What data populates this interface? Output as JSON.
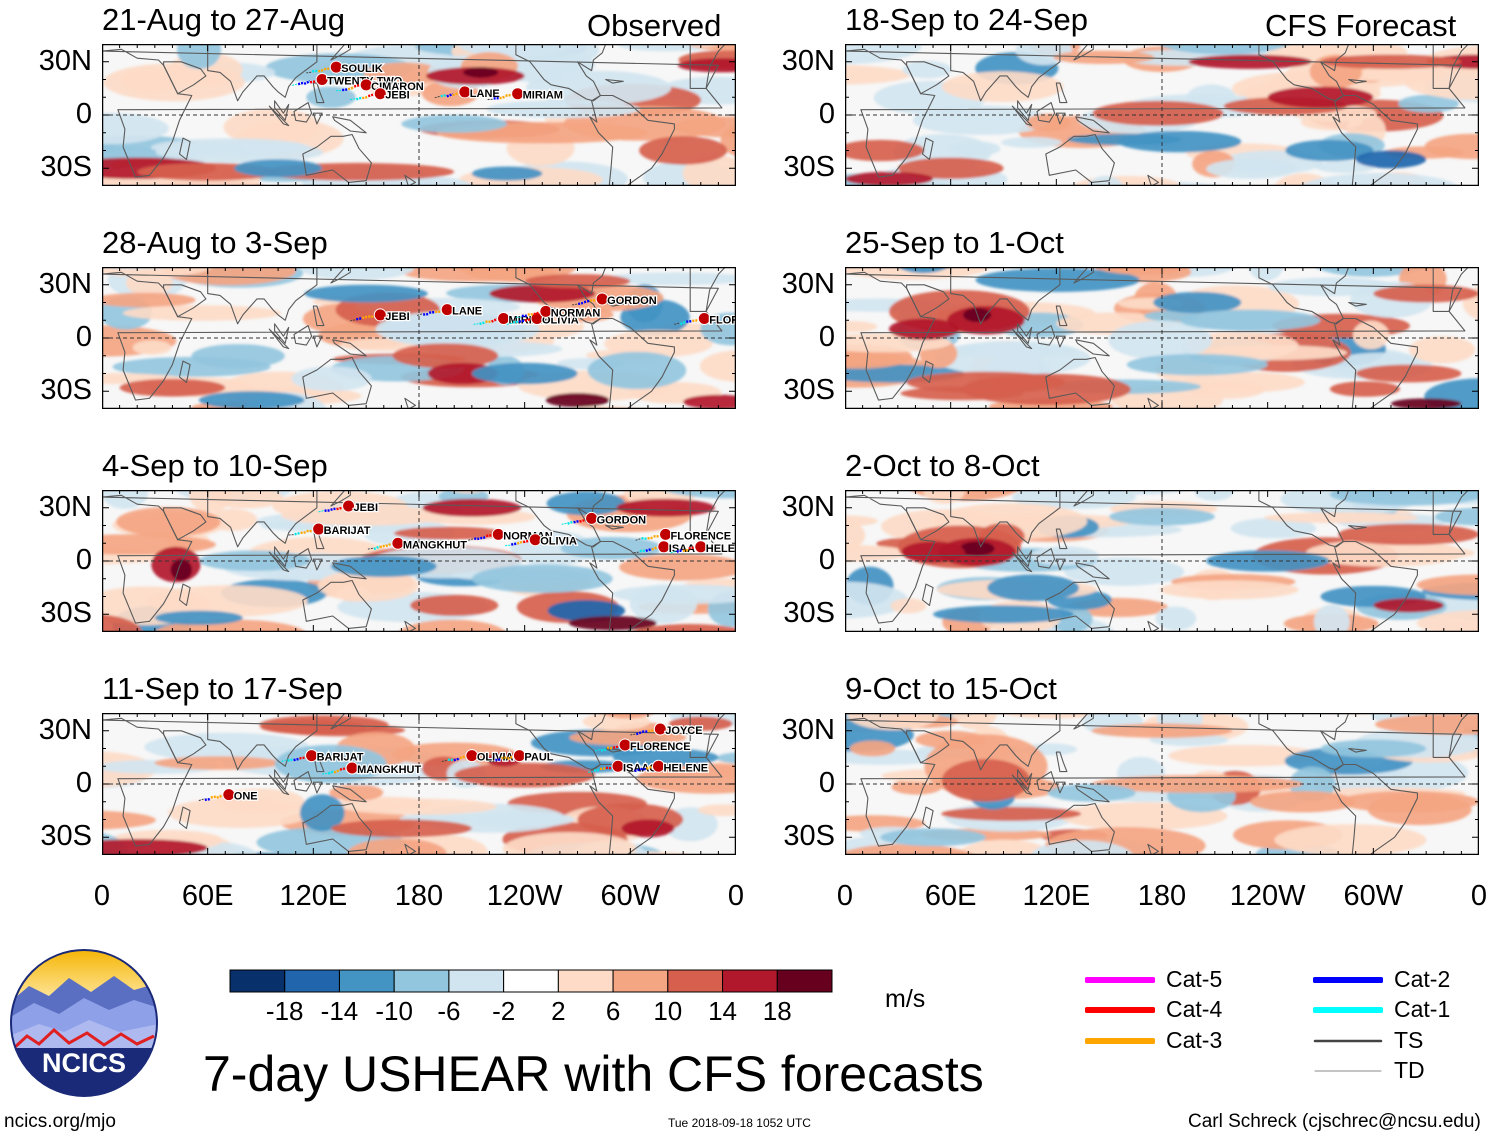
{
  "page": {
    "main_title": "7-day USHEAR with CFS forecasts",
    "observed_label": "Observed",
    "forecast_label": "CFS Forecast",
    "units": "m/s",
    "source_url": "ncics.org/mjo",
    "timestamp": "Tue 2018-09-18 1052 UTC",
    "author": "Carl Schreck (cjschrec@ncsu.edu)",
    "logo_text": "NCICS"
  },
  "chart_data": {
    "type": "heatmap",
    "variable": "7-day zonal wind shear (USHEAR)",
    "lat_ticks": [
      "30N",
      "0",
      "30S"
    ],
    "lon_ticks": [
      "0",
      "60E",
      "120E",
      "180",
      "120W",
      "60W",
      "0"
    ],
    "lon_range": [
      0,
      360
    ],
    "lat_range": [
      -40,
      40
    ],
    "colorbar": {
      "ticks": [
        "-18",
        "-14",
        "-10",
        "-6",
        "-2",
        "2",
        "6",
        "10",
        "14",
        "18"
      ],
      "colors": [
        "#08306b",
        "#2166ac",
        "#4393c3",
        "#92c5de",
        "#d1e5f0",
        "#ffffff",
        "#fddbc7",
        "#f4a582",
        "#d6604d",
        "#b2182b",
        "#67001f"
      ]
    },
    "observed_panels": [
      {
        "title": "21-Aug to 27-Aug",
        "storms": [
          {
            "name": "SOULIK",
            "lon": 133,
            "lat": 27
          },
          {
            "name": "TWENTY-TWO",
            "lon": 125,
            "lat": 20
          },
          {
            "name": "CIMARON",
            "lon": 150,
            "lat": 17
          },
          {
            "name": "JEBI",
            "lon": 158,
            "lat": 12
          },
          {
            "name": "LANE",
            "lon": 206,
            "lat": 13
          },
          {
            "name": "MIRIAM",
            "lon": 236,
            "lat": 12
          }
        ]
      },
      {
        "title": "28-Aug to 3-Sep",
        "storms": [
          {
            "name": "JEBI",
            "lon": 158,
            "lat": 13
          },
          {
            "name": "LANE",
            "lon": 196,
            "lat": 16
          },
          {
            "name": "MIRIAM",
            "lon": 228,
            "lat": 11
          },
          {
            "name": "OLIVIA",
            "lon": 247,
            "lat": 11
          },
          {
            "name": "NORMAN",
            "lon": 252,
            "lat": 15
          },
          {
            "name": "GORDON",
            "lon": 284,
            "lat": 22
          },
          {
            "name": "FLORENCE",
            "lon": 342,
            "lat": 11
          }
        ]
      },
      {
        "title": "4-Sep to 10-Sep",
        "storms": [
          {
            "name": "JEBI",
            "lon": 140,
            "lat": 31
          },
          {
            "name": "BARIJAT",
            "lon": 123,
            "lat": 18
          },
          {
            "name": "MANGKHUT",
            "lon": 168,
            "lat": 10
          },
          {
            "name": "NORMAN",
            "lon": 225,
            "lat": 15
          },
          {
            "name": "OLIVIA",
            "lon": 246,
            "lat": 12
          },
          {
            "name": "GORDON",
            "lon": 278,
            "lat": 24
          },
          {
            "name": "FLORENCE",
            "lon": 320,
            "lat": 15
          },
          {
            "name": "ISAAC",
            "lon": 319,
            "lat": 8
          },
          {
            "name": "HELENE",
            "lon": 340,
            "lat": 8
          }
        ]
      },
      {
        "title": "11-Sep to 17-Sep",
        "storms": [
          {
            "name": "BARIJAT",
            "lon": 119,
            "lat": 16
          },
          {
            "name": "MANGKHUT",
            "lon": 142,
            "lat": 9
          },
          {
            "name": "OLIVIA",
            "lon": 210,
            "lat": 16
          },
          {
            "name": "PAUL",
            "lon": 237,
            "lat": 16
          },
          {
            "name": "JOYCE",
            "lon": 317,
            "lat": 31
          },
          {
            "name": "FLORENCE",
            "lon": 297,
            "lat": 22
          },
          {
            "name": "ISAAC",
            "lon": 293,
            "lat": 10
          },
          {
            "name": "HELENE",
            "lon": 316,
            "lat": 10
          },
          {
            "name": "ONE",
            "lon": 72,
            "lat": -6
          }
        ]
      }
    ],
    "forecast_panels": [
      {
        "title": "18-Sep to 24-Sep"
      },
      {
        "title": "25-Sep to 1-Oct"
      },
      {
        "title": "2-Oct to 8-Oct"
      },
      {
        "title": "9-Oct to 15-Oct"
      }
    ],
    "legend": [
      {
        "label": "Cat-5",
        "color": "#ff00ff",
        "style": "thick"
      },
      {
        "label": "Cat-4",
        "color": "#ff0000",
        "style": "thick"
      },
      {
        "label": "Cat-3",
        "color": "#ffa500",
        "style": "thick"
      },
      {
        "label": "Cat-2",
        "color": "#0000ff",
        "style": "thick"
      },
      {
        "label": "Cat-1",
        "color": "#00ffff",
        "style": "thick"
      },
      {
        "label": "TS",
        "color": "#444444",
        "style": "medium"
      },
      {
        "label": "TD",
        "color": "#888888",
        "style": "thin"
      }
    ]
  }
}
